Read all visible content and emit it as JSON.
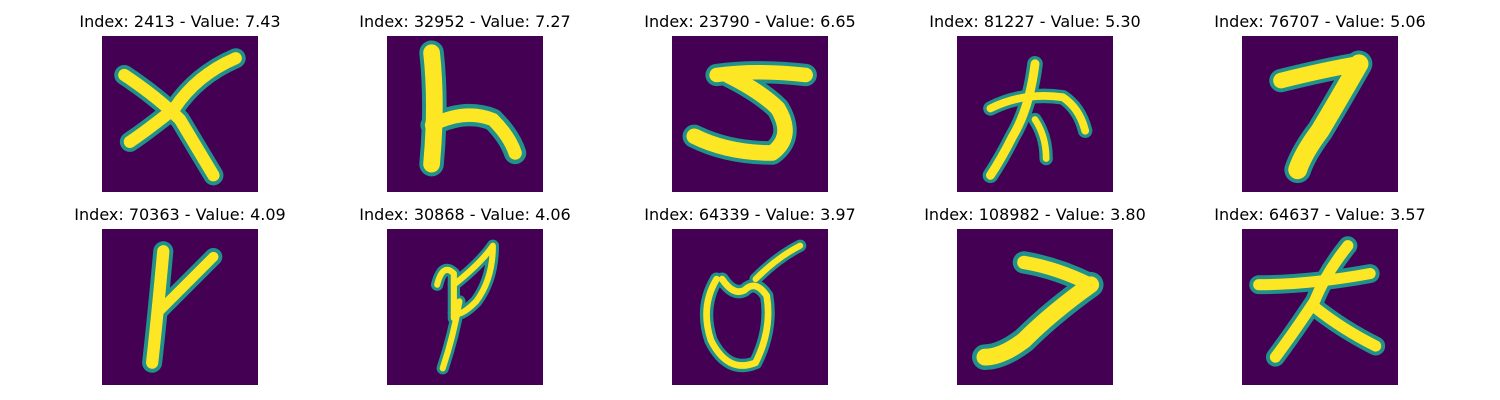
{
  "figure": {
    "panels": [
      {
        "index": "2413",
        "value": "7.43",
        "title": "Index: 2413 - Value: 7.43",
        "glyph": "x-shape"
      },
      {
        "index": "32952",
        "value": "7.27",
        "title": "Index: 32952 - Value: 7.27",
        "glyph": "h-shape"
      },
      {
        "index": "23790",
        "value": "6.65",
        "title": "Index: 23790 - Value: 6.65",
        "glyph": "5-shape"
      },
      {
        "index": "81227",
        "value": "5.30",
        "title": "Index: 81227 - Value: 5.30",
        "glyph": "kanji-shape"
      },
      {
        "index": "76707",
        "value": "5.06",
        "title": "Index: 76707 - Value: 5.06",
        "glyph": "7-shape"
      },
      {
        "index": "70363",
        "value": "4.09",
        "title": "Index: 70363 - Value: 4.09",
        "glyph": "y-shape"
      },
      {
        "index": "30868",
        "value": "4.06",
        "title": "Index: 30868 - Value: 4.06",
        "glyph": "p-loop-shape"
      },
      {
        "index": "64339",
        "value": "3.97",
        "title": "Index: 64339 - Value: 3.97",
        "glyph": "u-loop-shape"
      },
      {
        "index": "108982",
        "value": "3.80",
        "title": "Index: 108982 - Value: 3.80",
        "glyph": "slash-7-shape"
      },
      {
        "index": "64637",
        "value": "3.57",
        "title": "Index: 64637 - Value: 3.57",
        "glyph": "cross-shape"
      }
    ]
  },
  "colors": {
    "background": "#440154",
    "stroke_core": "#fde725",
    "stroke_edge": "#21918c",
    "stroke_mid": "#5ec962"
  }
}
